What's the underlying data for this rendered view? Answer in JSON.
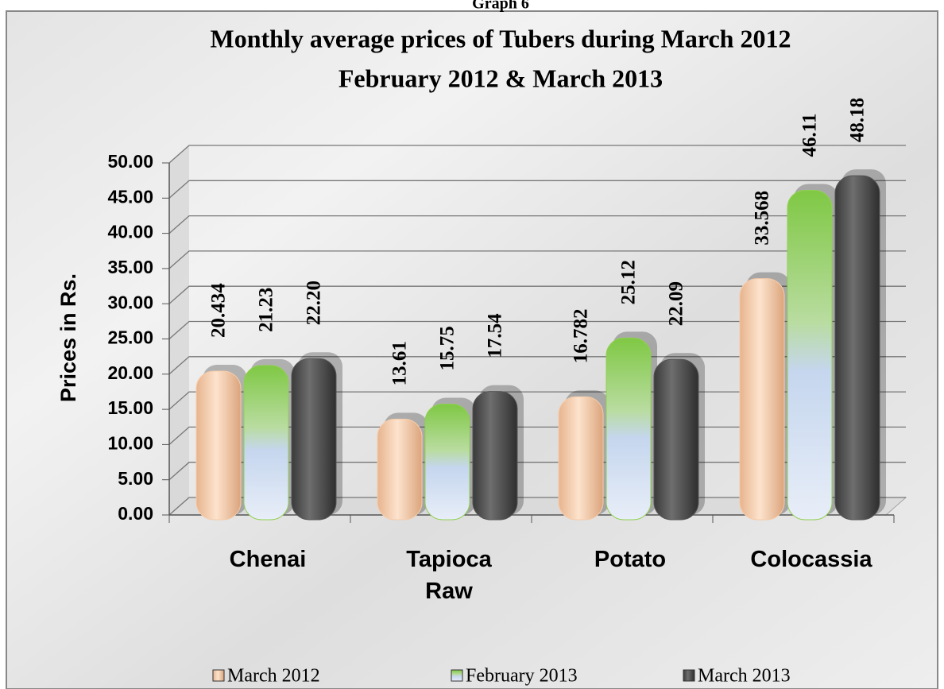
{
  "chart_data": {
    "type": "bar",
    "heading": "Graph 6",
    "title": "Monthly average prices of Tubers during March  2012",
    "subtitle": "February 2012 & March 2013",
    "ylabel": "Prices in Rs.",
    "categories": [
      "Chenai",
      "Tapioca Raw",
      "Potato",
      "Colocassia"
    ],
    "series": [
      {
        "name": "March 2012",
        "color": "#f6cba8",
        "values": [
          20.434,
          13.61,
          16.782,
          33.568
        ]
      },
      {
        "name": "February 2013",
        "color": "#8fd04f",
        "values": [
          21.23,
          15.75,
          25.12,
          46.11
        ]
      },
      {
        "name": "March 2013",
        "color": "#555555",
        "values": [
          22.2,
          17.54,
          22.09,
          48.18
        ],
        "value_labels": [
          "22.20",
          "17.54",
          "22.09",
          "48.18"
        ]
      }
    ],
    "ylim": [
      0,
      50
    ],
    "yticks": [
      {
        "value": 0,
        "label": "0.00"
      },
      {
        "value": 5,
        "label": "5.00"
      },
      {
        "value": 10,
        "label": "10.00"
      },
      {
        "value": 15,
        "label": "15.00"
      },
      {
        "value": 20,
        "label": "20.00"
      },
      {
        "value": 25,
        "label": "25.00"
      },
      {
        "value": 30,
        "label": "30.00"
      },
      {
        "value": 35,
        "label": "35.00"
      },
      {
        "value": 40,
        "label": "40.00"
      },
      {
        "value": 45,
        "label": "45.00"
      },
      {
        "value": 50,
        "label": "50.00"
      }
    ],
    "grid": true,
    "legend": "bottom"
  }
}
